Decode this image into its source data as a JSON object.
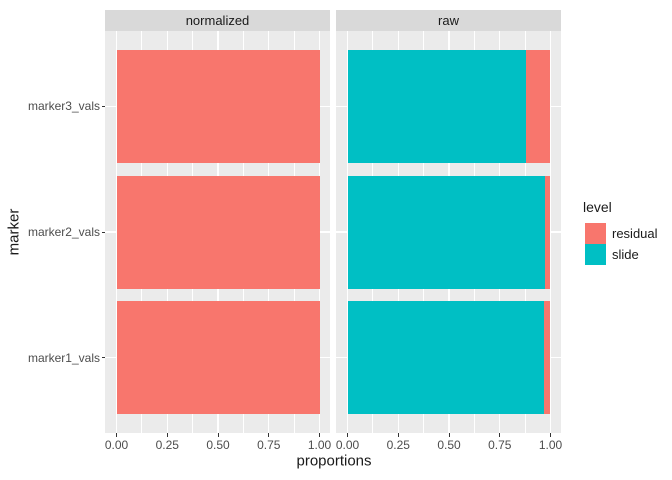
{
  "chart_data": {
    "type": "bar",
    "subtype": "horizontal-stacked-faceted",
    "title": "",
    "xlabel": "proportions",
    "ylabel": "marker",
    "categories": [
      "marker1_vals",
      "marker2_vals",
      "marker3_vals"
    ],
    "xlim": [
      0,
      1
    ],
    "grid": true,
    "x_ticks": [
      {
        "value": 0,
        "label": "0.00"
      },
      {
        "value": 0.25,
        "label": "0.25"
      },
      {
        "value": 0.5,
        "label": "0.50"
      },
      {
        "value": 0.75,
        "label": "0.75"
      },
      {
        "value": 1.0,
        "label": "1.00"
      }
    ],
    "stack_order": [
      "slide",
      "residual"
    ],
    "facets": [
      {
        "label": "normalized",
        "series": [
          {
            "name": "residual",
            "color": "#F8766D",
            "values": [
              1.0,
              1.0,
              1.0
            ]
          },
          {
            "name": "slide",
            "color": "#00BFC4",
            "values": [
              0.0,
              0.0,
              0.0
            ]
          }
        ]
      },
      {
        "label": "raw",
        "series": [
          {
            "name": "residual",
            "color": "#F8766D",
            "values": [
              0.03,
              0.025,
              0.12
            ]
          },
          {
            "name": "slide",
            "color": "#00BFC4",
            "values": [
              0.97,
              0.975,
              0.88
            ]
          }
        ]
      }
    ],
    "legend": {
      "title": "level",
      "position": "right",
      "entries": [
        {
          "label": "residual",
          "color": "#F8766D"
        },
        {
          "label": "slide",
          "color": "#00BFC4"
        }
      ]
    },
    "colors": {
      "panel_background": "#EBEBEB",
      "strip_background": "#D9D9D9",
      "gridline": "#FFFFFF",
      "tick_mark": "#333333",
      "tick_text": "#4D4D4D",
      "title_text": "#1A1A1A"
    }
  }
}
